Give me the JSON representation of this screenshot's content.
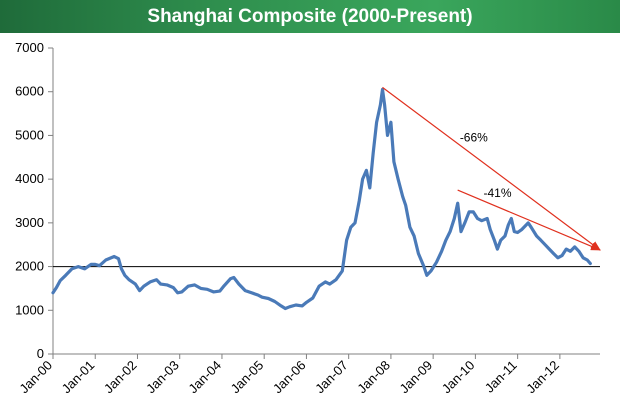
{
  "chart_data": {
    "type": "line",
    "title": "Shanghai Composite (2000-Present)",
    "xlabel": "",
    "ylabel": "",
    "x_tick_labels": [
      "Jan-00",
      "Jan-01",
      "Jan-02",
      "Jan-03",
      "Jan-04",
      "Jan-05",
      "Jan-06",
      "Jan-07",
      "Jan-08",
      "Jan-09",
      "Jan-10",
      "Jan-11",
      "Jan-12"
    ],
    "y_ticks": [
      0,
      1000,
      2000,
      3000,
      4000,
      5000,
      6000,
      7000
    ],
    "ylim": [
      0,
      7000
    ],
    "xlim": [
      2000.0,
      2012.95
    ],
    "reference_line": 2000,
    "series": [
      {
        "name": "Shanghai Composite",
        "color": "#4a7ab8",
        "points": [
          [
            2000.0,
            1400
          ],
          [
            2000.08,
            1520
          ],
          [
            2000.17,
            1680
          ],
          [
            2000.3,
            1800
          ],
          [
            2000.45,
            1950
          ],
          [
            2000.6,
            2000
          ],
          [
            2000.75,
            1950
          ],
          [
            2000.9,
            2050
          ],
          [
            2001.0,
            2050
          ],
          [
            2001.1,
            2020
          ],
          [
            2001.25,
            2150
          ],
          [
            2001.45,
            2230
          ],
          [
            2001.55,
            2180
          ],
          [
            2001.62,
            1950
          ],
          [
            2001.7,
            1800
          ],
          [
            2001.8,
            1700
          ],
          [
            2001.95,
            1600
          ],
          [
            2002.05,
            1450
          ],
          [
            2002.15,
            1550
          ],
          [
            2002.3,
            1650
          ],
          [
            2002.45,
            1700
          ],
          [
            2002.55,
            1600
          ],
          [
            2002.7,
            1580
          ],
          [
            2002.85,
            1520
          ],
          [
            2002.95,
            1400
          ],
          [
            2003.05,
            1420
          ],
          [
            2003.2,
            1550
          ],
          [
            2003.35,
            1580
          ],
          [
            2003.5,
            1500
          ],
          [
            2003.65,
            1480
          ],
          [
            2003.8,
            1420
          ],
          [
            2003.95,
            1440
          ],
          [
            2004.05,
            1560
          ],
          [
            2004.2,
            1720
          ],
          [
            2004.28,
            1750
          ],
          [
            2004.4,
            1600
          ],
          [
            2004.55,
            1450
          ],
          [
            2004.7,
            1400
          ],
          [
            2004.85,
            1350
          ],
          [
            2004.95,
            1300
          ],
          [
            2005.1,
            1270
          ],
          [
            2005.25,
            1200
          ],
          [
            2005.4,
            1100
          ],
          [
            2005.5,
            1040
          ],
          [
            2005.6,
            1080
          ],
          [
            2005.75,
            1120
          ],
          [
            2005.9,
            1100
          ],
          [
            2006.0,
            1180
          ],
          [
            2006.15,
            1280
          ],
          [
            2006.3,
            1550
          ],
          [
            2006.45,
            1650
          ],
          [
            2006.55,
            1600
          ],
          [
            2006.7,
            1700
          ],
          [
            2006.85,
            1900
          ],
          [
            2006.95,
            2600
          ],
          [
            2007.05,
            2900
          ],
          [
            2007.15,
            3000
          ],
          [
            2007.25,
            3500
          ],
          [
            2007.33,
            4000
          ],
          [
            2007.42,
            4200
          ],
          [
            2007.5,
            3800
          ],
          [
            2007.58,
            4600
          ],
          [
            2007.66,
            5300
          ],
          [
            2007.75,
            5700
          ],
          [
            2007.8,
            6050
          ],
          [
            2007.85,
            5700
          ],
          [
            2007.92,
            5000
          ],
          [
            2008.0,
            5300
          ],
          [
            2008.07,
            4400
          ],
          [
            2008.17,
            4000
          ],
          [
            2008.28,
            3600
          ],
          [
            2008.35,
            3400
          ],
          [
            2008.45,
            2900
          ],
          [
            2008.55,
            2700
          ],
          [
            2008.65,
            2300
          ],
          [
            2008.78,
            2000
          ],
          [
            2008.85,
            1800
          ],
          [
            2008.95,
            1900
          ],
          [
            2009.08,
            2100
          ],
          [
            2009.2,
            2350
          ],
          [
            2009.3,
            2600
          ],
          [
            2009.4,
            2800
          ],
          [
            2009.5,
            3100
          ],
          [
            2009.58,
            3450
          ],
          [
            2009.66,
            2800
          ],
          [
            2009.75,
            3000
          ],
          [
            2009.85,
            3250
          ],
          [
            2009.95,
            3250
          ],
          [
            2010.05,
            3100
          ],
          [
            2010.15,
            3050
          ],
          [
            2010.28,
            3100
          ],
          [
            2010.35,
            2850
          ],
          [
            2010.45,
            2600
          ],
          [
            2010.52,
            2400
          ],
          [
            2010.6,
            2600
          ],
          [
            2010.7,
            2700
          ],
          [
            2010.78,
            2950
          ],
          [
            2010.85,
            3100
          ],
          [
            2010.92,
            2800
          ],
          [
            2011.0,
            2780
          ],
          [
            2011.1,
            2850
          ],
          [
            2011.25,
            3000
          ],
          [
            2011.32,
            2900
          ],
          [
            2011.45,
            2700
          ],
          [
            2011.55,
            2600
          ],
          [
            2011.65,
            2500
          ],
          [
            2011.75,
            2400
          ],
          [
            2011.85,
            2300
          ],
          [
            2011.95,
            2200
          ],
          [
            2012.05,
            2250
          ],
          [
            2012.15,
            2400
          ],
          [
            2012.25,
            2350
          ],
          [
            2012.35,
            2450
          ],
          [
            2012.45,
            2350
          ],
          [
            2012.55,
            2200
          ],
          [
            2012.65,
            2150
          ],
          [
            2012.72,
            2070
          ]
        ]
      }
    ],
    "annotations": [
      {
        "label": "-66%",
        "from": [
          2007.8,
          6100
        ],
        "to": [
          2012.95,
          2380
        ]
      },
      {
        "label": "-41%",
        "from": [
          2009.58,
          3750
        ],
        "to": [
          2012.95,
          2380
        ]
      }
    ]
  }
}
